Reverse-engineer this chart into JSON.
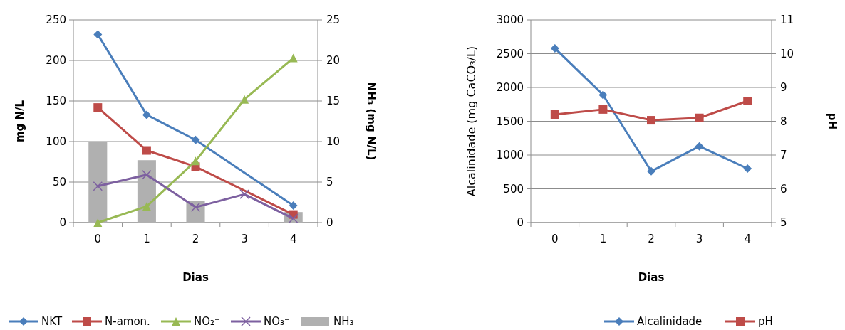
{
  "chart_data": [
    {
      "type": "line",
      "categories": [
        "0",
        "1",
        "2",
        "3",
        "4"
      ],
      "xlabel": "Dias",
      "ylabel": "mg N/L",
      "y2label": "NH₃ (mg N/L)",
      "ylim": [
        0,
        250
      ],
      "yticks": [
        0,
        50,
        100,
        150,
        200,
        250
      ],
      "y2lim": [
        0,
        25
      ],
      "y2ticks": [
        0,
        5,
        10,
        15,
        20,
        25
      ],
      "grid": "y",
      "legend": "bottom",
      "series": [
        {
          "name": "NKT",
          "color": "#4a7ebb",
          "marker": "diamond",
          "values": [
            232,
            133,
            102,
            null,
            21
          ]
        },
        {
          "name": "N-amon.",
          "color": "#be4b48",
          "marker": "square",
          "values": [
            142,
            89,
            69,
            null,
            10
          ]
        },
        {
          "name": "NO₂⁻",
          "color": "#98b954",
          "marker": "triangle",
          "values": [
            0,
            20,
            76,
            152,
            203
          ]
        },
        {
          "name": "NO₃⁻",
          "color": "#7d60a0",
          "marker": "cross",
          "values": [
            45,
            59,
            19,
            35,
            5
          ]
        },
        {
          "name": "NH₃",
          "type": "bar",
          "axis": "y2",
          "color": "#b0b0b0",
          "values": [
            10,
            7.7,
            2.7,
            null,
            1.3
          ]
        }
      ]
    },
    {
      "type": "line",
      "categories": [
        "0",
        "1",
        "2",
        "3",
        "4"
      ],
      "xlabel": "Dias",
      "ylabel": "Alcalinidade (mg CaCO₃/L)",
      "y2label": "pH",
      "ylim": [
        0,
        3000
      ],
      "yticks": [
        0,
        500,
        1000,
        1500,
        2000,
        2500,
        3000
      ],
      "y2lim": [
        5,
        11
      ],
      "y2ticks": [
        5,
        6,
        7,
        8,
        9,
        10,
        11
      ],
      "grid": "y",
      "legend": "bottom",
      "series": [
        {
          "name": "Alcalinidade",
          "color": "#4a7ebb",
          "marker": "diamond",
          "values": [
            2580,
            1890,
            760,
            1130,
            800
          ]
        },
        {
          "name": "pH",
          "axis": "y2",
          "color": "#be4b48",
          "marker": "square",
          "values": [
            8.2,
            8.35,
            8.03,
            8.1,
            8.6
          ]
        }
      ]
    }
  ]
}
